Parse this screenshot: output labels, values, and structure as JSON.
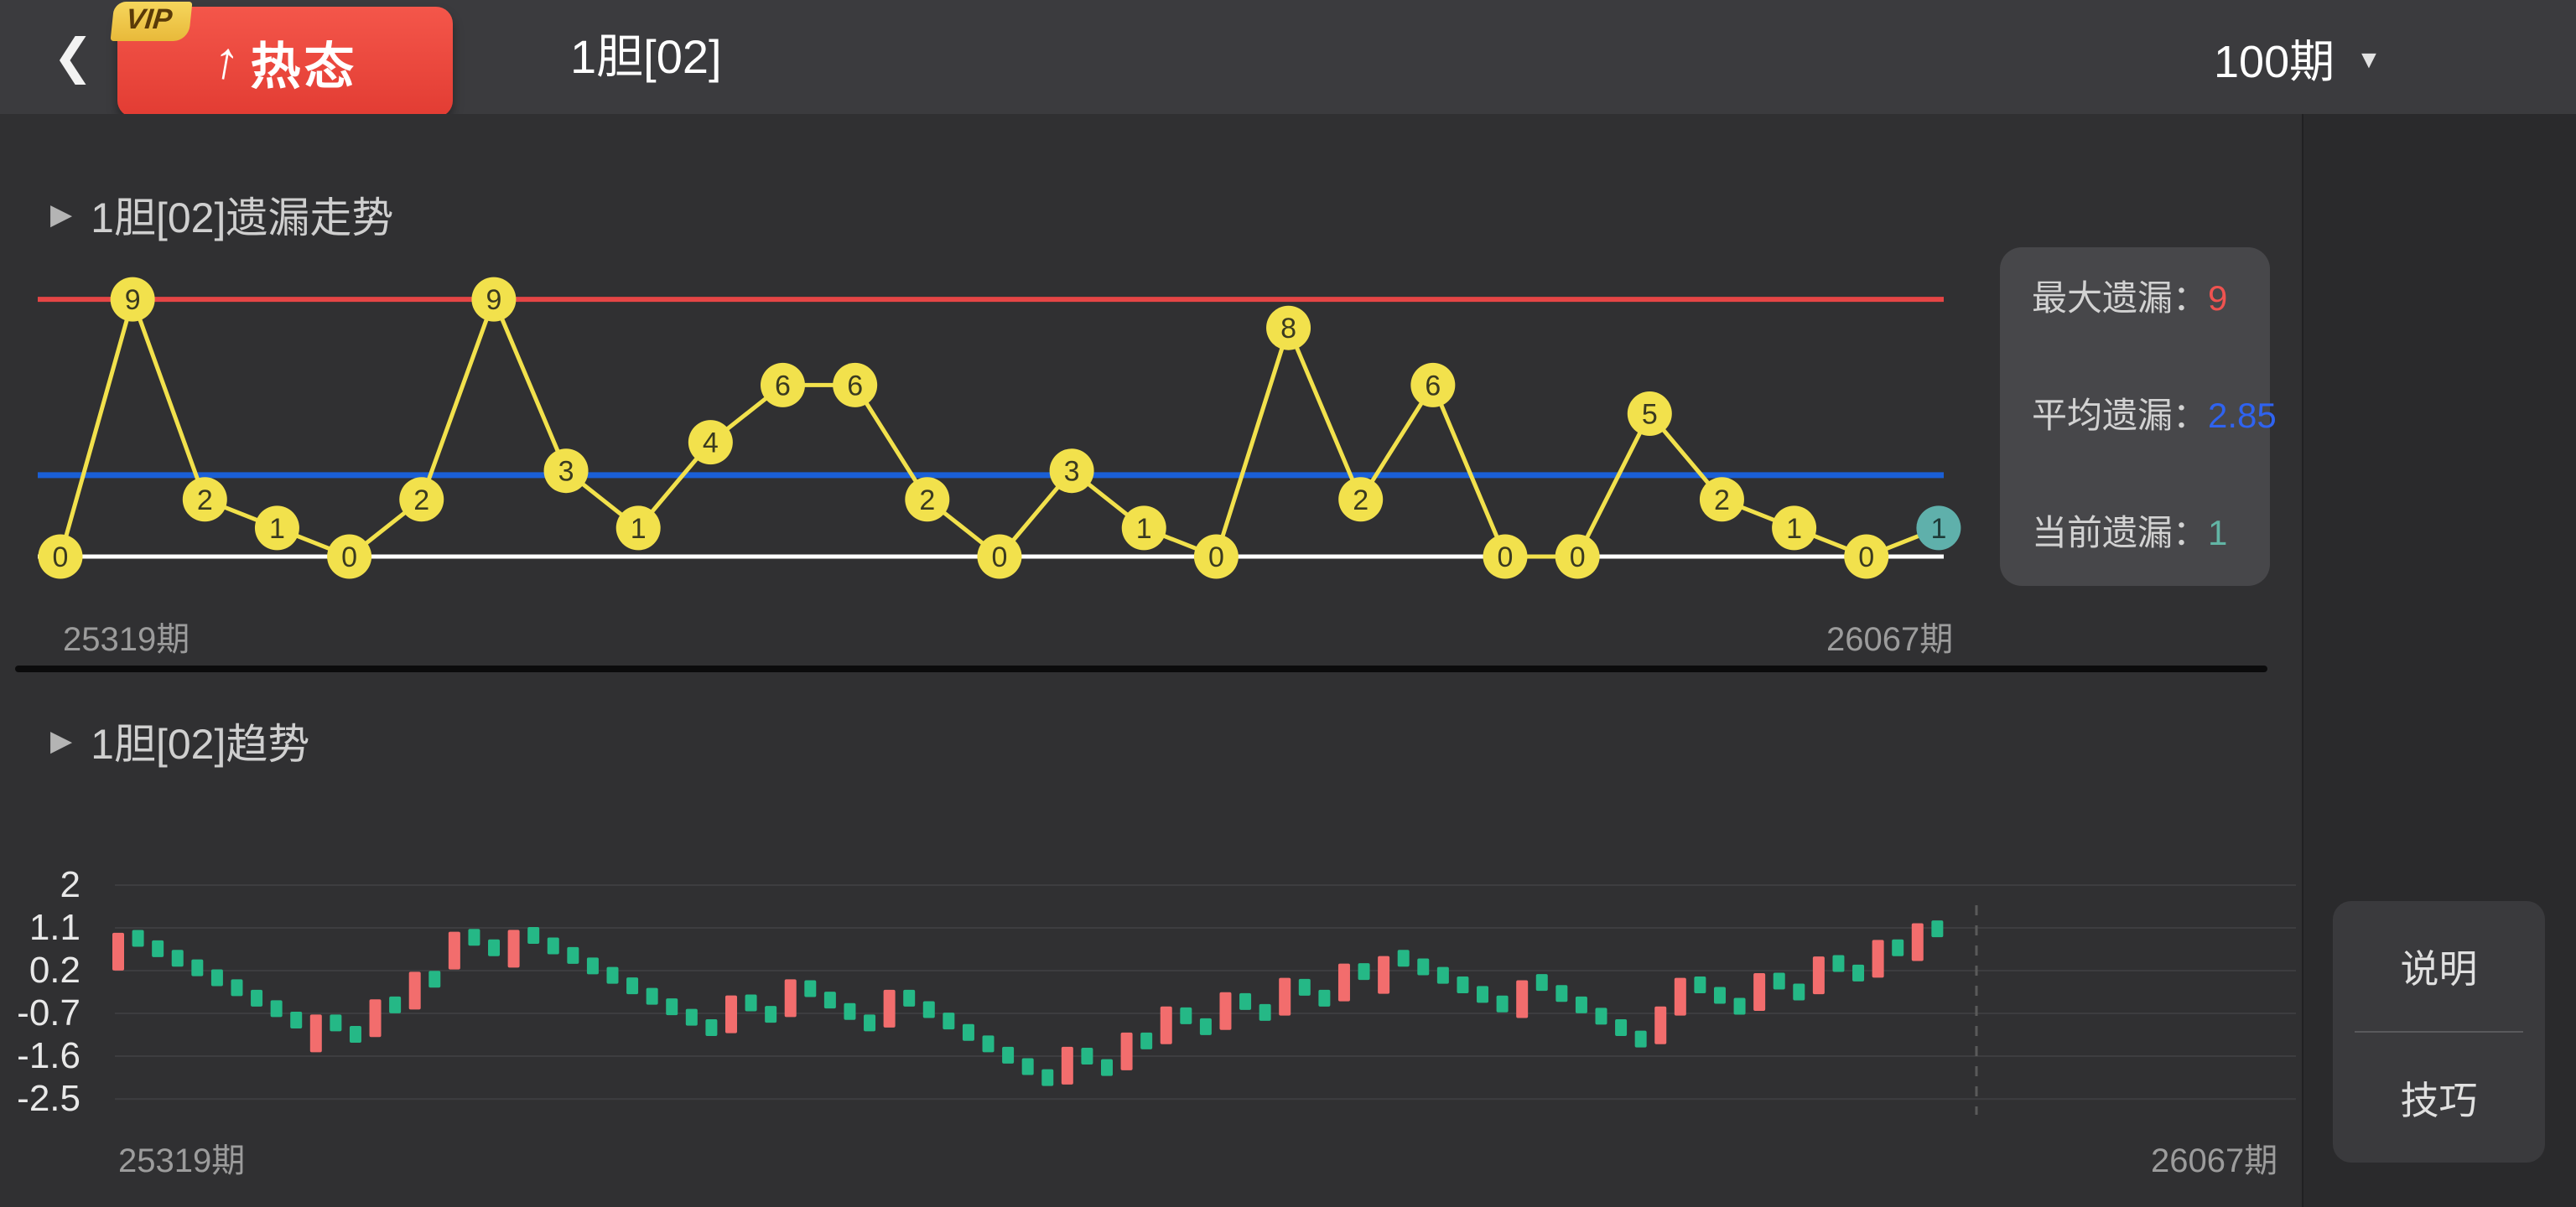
{
  "header": {
    "back_icon": "❮",
    "vip_badge": {
      "tag": "VIP",
      "arrow": "↑",
      "label": "热态"
    },
    "title": "1胆[02]",
    "period_selector": {
      "value": "100期",
      "caret": "▼"
    }
  },
  "sections": {
    "omission": {
      "marker": "▶",
      "title": "1胆[02]遗漏走势"
    },
    "trend": {
      "marker": "▶",
      "title": "1胆[02]趋势"
    }
  },
  "stats_panel": {
    "items": [
      {
        "label": "最大遗漏：",
        "value": "9",
        "color": "#ef5350"
      },
      {
        "label": "平均遗漏：",
        "value": "2.85",
        "color": "#2f63f0"
      },
      {
        "label": "当前遗漏：",
        "value": "1",
        "color": "#62b5a5"
      }
    ]
  },
  "side_buttons": [
    {
      "label": "说明"
    },
    {
      "label": "技巧"
    }
  ],
  "chart_data": [
    {
      "type": "line",
      "title": "1胆[02]遗漏走势",
      "values": [
        0,
        9,
        2,
        1,
        0,
        2,
        9,
        3,
        1,
        4,
        6,
        6,
        2,
        0,
        3,
        1,
        0,
        8,
        2,
        6,
        0,
        0,
        5,
        2,
        1,
        0,
        1
      ],
      "current_index": 26,
      "reference_lines": {
        "max": 9,
        "average": 2.85,
        "zero": 0
      },
      "ylim": [
        0,
        9
      ],
      "x_start_label": "25319期",
      "x_end_label": "26067期",
      "colors": {
        "point_fill": "#f2e14c",
        "point_text": "#3a3a20",
        "line": "#f2e14c",
        "current_fill": "#5fb0ab",
        "current_text": "#1e3b38",
        "max_line": "#e54545",
        "avg_line": "#1a5fd6",
        "zero_line": "#ffffff"
      }
    },
    {
      "type": "bar",
      "title": "1胆[02]趋势",
      "yticks": [
        2,
        1.1,
        0.2,
        -0.7,
        -1.6,
        -2.5
      ],
      "ylim": [
        -2.5,
        2
      ],
      "grid": true,
      "x_start_label": "25319期",
      "x_end_label": "26067期",
      "colors": {
        "up": "#f26d6d",
        "down": "#25b886",
        "grid": "#3d3d40",
        "dashed_line": "#5a5a5a"
      },
      "bars": [
        [
          "r",
          0.6
        ],
        [
          "g",
          0.88
        ],
        [
          "g",
          0.66
        ],
        [
          "g",
          0.46
        ],
        [
          "g",
          0.26
        ],
        [
          "g",
          0.05
        ],
        [
          "g",
          -0.16
        ],
        [
          "g",
          -0.38
        ],
        [
          "g",
          -0.6
        ],
        [
          "g",
          -0.84
        ],
        [
          "r",
          -1.12
        ],
        [
          "g",
          -0.9
        ],
        [
          "g",
          -1.14
        ],
        [
          "r",
          -0.8
        ],
        [
          "g",
          -0.52
        ],
        [
          "r",
          -0.22
        ],
        [
          "g",
          0.02
        ],
        [
          "r",
          0.62
        ],
        [
          "g",
          0.9
        ],
        [
          "g",
          0.68
        ],
        [
          "r",
          0.66
        ],
        [
          "g",
          0.94
        ],
        [
          "g",
          0.72
        ],
        [
          "g",
          0.52
        ],
        [
          "g",
          0.3
        ],
        [
          "g",
          0.1
        ],
        [
          "g",
          -0.12
        ],
        [
          "g",
          -0.34
        ],
        [
          "g",
          -0.56
        ],
        [
          "g",
          -0.78
        ],
        [
          "g",
          -1.0
        ],
        [
          "r",
          -0.72
        ],
        [
          "g",
          -0.48
        ],
        [
          "g",
          -0.72
        ],
        [
          "r",
          -0.38
        ],
        [
          "g",
          -0.18
        ],
        [
          "g",
          -0.42
        ],
        [
          "g",
          -0.66
        ],
        [
          "g",
          -0.9
        ],
        [
          "r",
          -0.6
        ],
        [
          "g",
          -0.38
        ],
        [
          "g",
          -0.62
        ],
        [
          "g",
          -0.86
        ],
        [
          "g",
          -1.1
        ],
        [
          "g",
          -1.34
        ],
        [
          "g",
          -1.58
        ],
        [
          "g",
          -1.82
        ],
        [
          "g",
          -2.05
        ],
        [
          "r",
          -1.8
        ],
        [
          "g",
          -1.6
        ],
        [
          "g",
          -1.84
        ],
        [
          "r",
          -1.5
        ],
        [
          "g",
          -1.28
        ],
        [
          "r",
          -0.95
        ],
        [
          "g",
          -0.75
        ],
        [
          "g",
          -0.98
        ],
        [
          "r",
          -0.65
        ],
        [
          "g",
          -0.45
        ],
        [
          "g",
          -0.68
        ],
        [
          "r",
          -0.35
        ],
        [
          "g",
          -0.15
        ],
        [
          "g",
          -0.38
        ],
        [
          "r",
          -0.05
        ],
        [
          "g",
          0.18
        ],
        [
          "r",
          0.11
        ],
        [
          "g",
          0.46
        ],
        [
          "g",
          0.28
        ],
        [
          "g",
          0.1
        ],
        [
          "g",
          -0.1
        ],
        [
          "g",
          -0.3
        ],
        [
          "g",
          -0.5
        ],
        [
          "r",
          -0.4
        ],
        [
          "g",
          -0.05
        ],
        [
          "g",
          -0.28
        ],
        [
          "g",
          -0.52
        ],
        [
          "g",
          -0.76
        ],
        [
          "g",
          -1.0
        ],
        [
          "g",
          -1.24
        ],
        [
          "r",
          -0.95
        ],
        [
          "r",
          -0.35
        ],
        [
          "g",
          -0.1
        ],
        [
          "g",
          -0.32
        ],
        [
          "g",
          -0.55
        ],
        [
          "r",
          -0.25
        ],
        [
          "g",
          -0.02
        ],
        [
          "g",
          -0.25
        ],
        [
          "r",
          0.1
        ],
        [
          "g",
          0.35
        ],
        [
          "g",
          0.15
        ],
        [
          "r",
          0.45
        ],
        [
          "g",
          0.68
        ],
        [
          "r",
          0.8
        ],
        [
          "g",
          1.08
        ]
      ]
    }
  ]
}
